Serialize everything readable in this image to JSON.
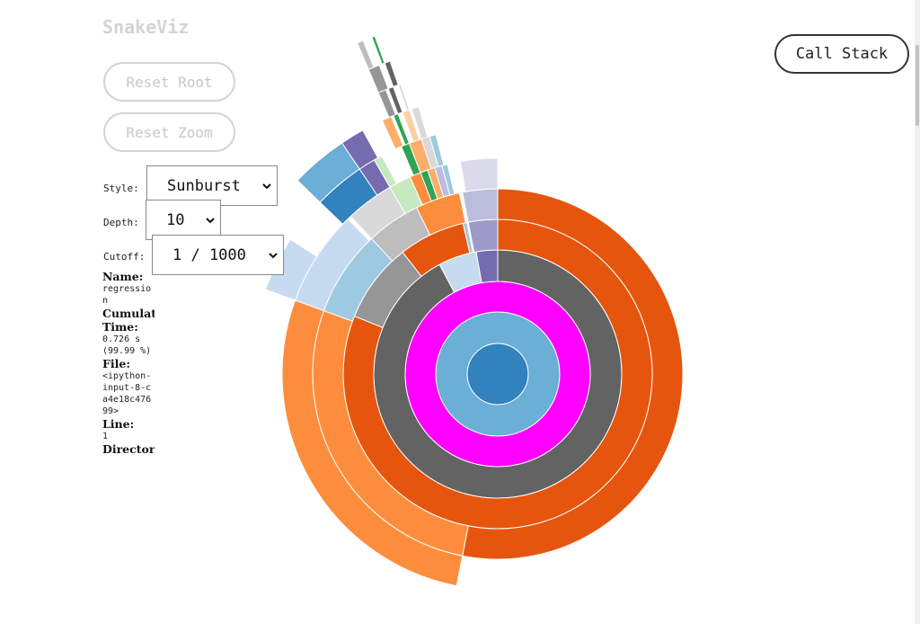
{
  "header": {
    "title": "SnakeViz"
  },
  "buttons": {
    "reset_root": "Reset Root",
    "reset_zoom": "Reset Zoom",
    "call_stack": "Call Stack"
  },
  "controls": {
    "style": {
      "label": "Style:",
      "value": "Sunburst"
    },
    "depth": {
      "label": "Depth:",
      "value": "10"
    },
    "cutoff": {
      "label": "Cutoff:",
      "value": "1 / 1000"
    }
  },
  "info": {
    "name": {
      "label": "Name:",
      "value": "regression"
    },
    "cumulative_time": {
      "label": "Cumulative Time:",
      "value": "0.726 s (99.99 %)"
    },
    "file": {
      "label": "File:",
      "value": "<ipython-input-8-ca4e18c47699>"
    },
    "line": {
      "label": "Line:",
      "value": "1"
    },
    "directory": {
      "label": "Directory:"
    }
  }
}
